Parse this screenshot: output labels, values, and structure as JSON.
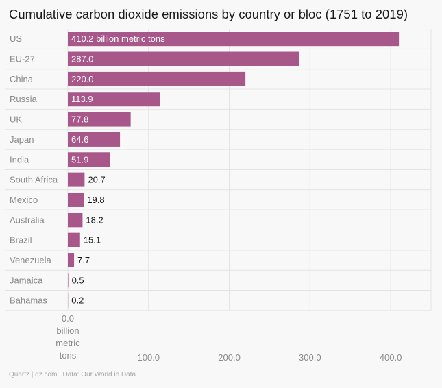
{
  "chart_data": {
    "type": "bar",
    "orientation": "horizontal",
    "title": "Cumulative carbon dioxide emissions by country or bloc (1751 to 2019)",
    "categories": [
      "US",
      "EU-27",
      "China",
      "Russia",
      "UK",
      "Japan",
      "India",
      "South Africa",
      "Mexico",
      "Australia",
      "Brazil",
      "Venezuela",
      "Jamaica",
      "Bahamas"
    ],
    "values": [
      410.2,
      287.0,
      220.0,
      113.9,
      77.8,
      64.6,
      51.9,
      20.7,
      19.8,
      18.2,
      15.1,
      7.7,
      0.5,
      0.2
    ],
    "value_labels": [
      "410.2 billion metric tons",
      "287.0",
      "220.0",
      "113.9",
      "77.8",
      "64.6",
      "51.9",
      "20.7",
      "19.8",
      "18.2",
      "15.1",
      "7.7",
      "0.5",
      "0.2"
    ],
    "xlim": [
      0,
      450
    ],
    "xticks": [
      {
        "value": 0,
        "label": "0.0 billion metric tons"
      },
      {
        "value": 100,
        "label": "100.0"
      },
      {
        "value": 200,
        "label": "200.0"
      },
      {
        "value": 300,
        "label": "300.0"
      },
      {
        "value": 400,
        "label": "400.0"
      }
    ],
    "xlabel": "",
    "ylabel": "",
    "bar_color": "#a8578a",
    "grid": true
  },
  "footer": "Quartz | qz.com | Data: Our World in Data"
}
